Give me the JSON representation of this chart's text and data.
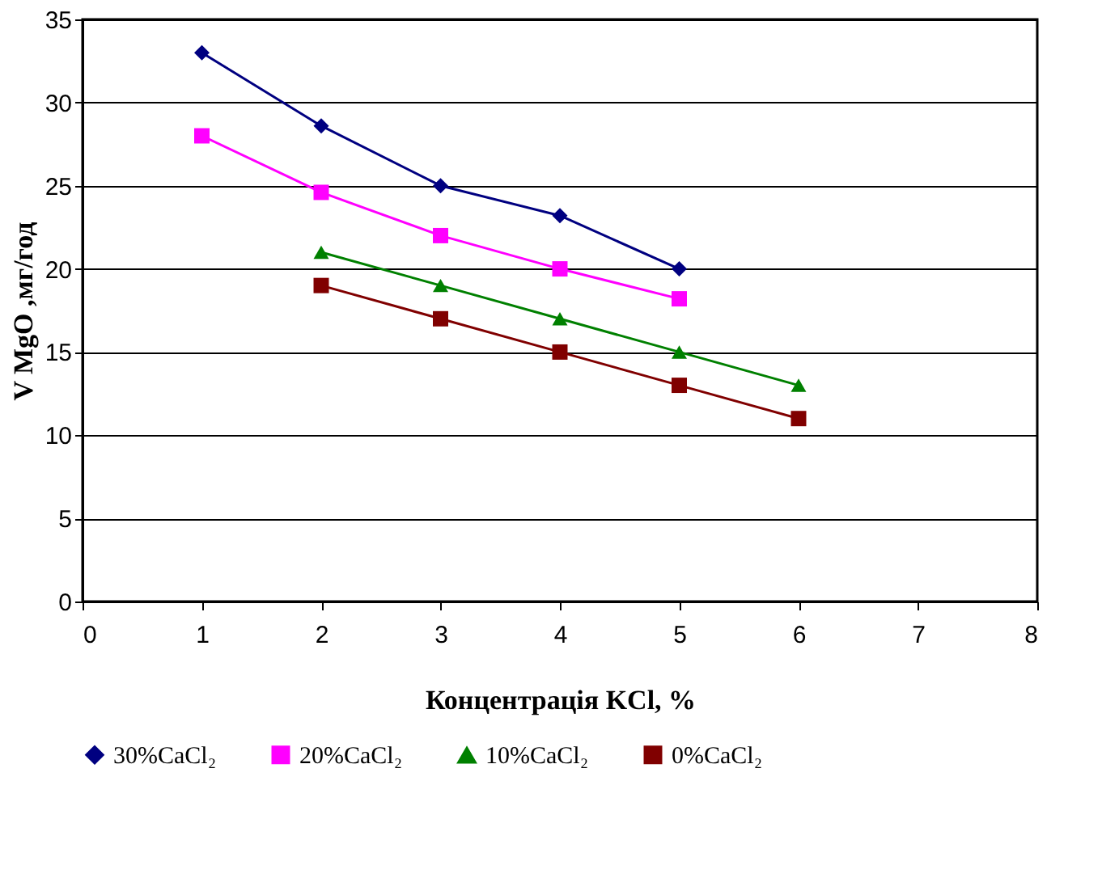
{
  "chart_data": {
    "type": "line",
    "xlabel": "Концентрація KCl, %",
    "ylabel": "V MgO ,мг/год",
    "xlim": [
      0,
      8
    ],
    "xticks": [
      0,
      1,
      2,
      3,
      4,
      5,
      6,
      7,
      8
    ],
    "ylim": [
      0,
      35
    ],
    "yticks": [
      0,
      5,
      10,
      15,
      20,
      25,
      30,
      35
    ],
    "grid": "y",
    "legend": "bottom",
    "series": [
      {
        "name": "30%CaCl₂",
        "color": "#000080",
        "marker": "diamond",
        "x": [
          1,
          2,
          3,
          4,
          5
        ],
        "values": [
          33,
          28.6,
          25,
          23.2,
          20
        ]
      },
      {
        "name": "20%CaCl₂",
        "color": "#ff00ff",
        "marker": "square",
        "x": [
          1,
          2,
          3,
          4,
          5
        ],
        "values": [
          28,
          24.6,
          22,
          20,
          18.2
        ]
      },
      {
        "name": "10%CaCl₂",
        "color": "#008000",
        "marker": "triangle",
        "x": [
          2,
          3,
          4,
          5,
          6
        ],
        "values": [
          21,
          19,
          17,
          15,
          13
        ]
      },
      {
        "name": "0%CaCl₂",
        "color": "#800000",
        "marker": "square",
        "x": [
          2,
          3,
          4,
          5,
          6
        ],
        "values": [
          19,
          17,
          15,
          13,
          11
        ]
      }
    ]
  }
}
